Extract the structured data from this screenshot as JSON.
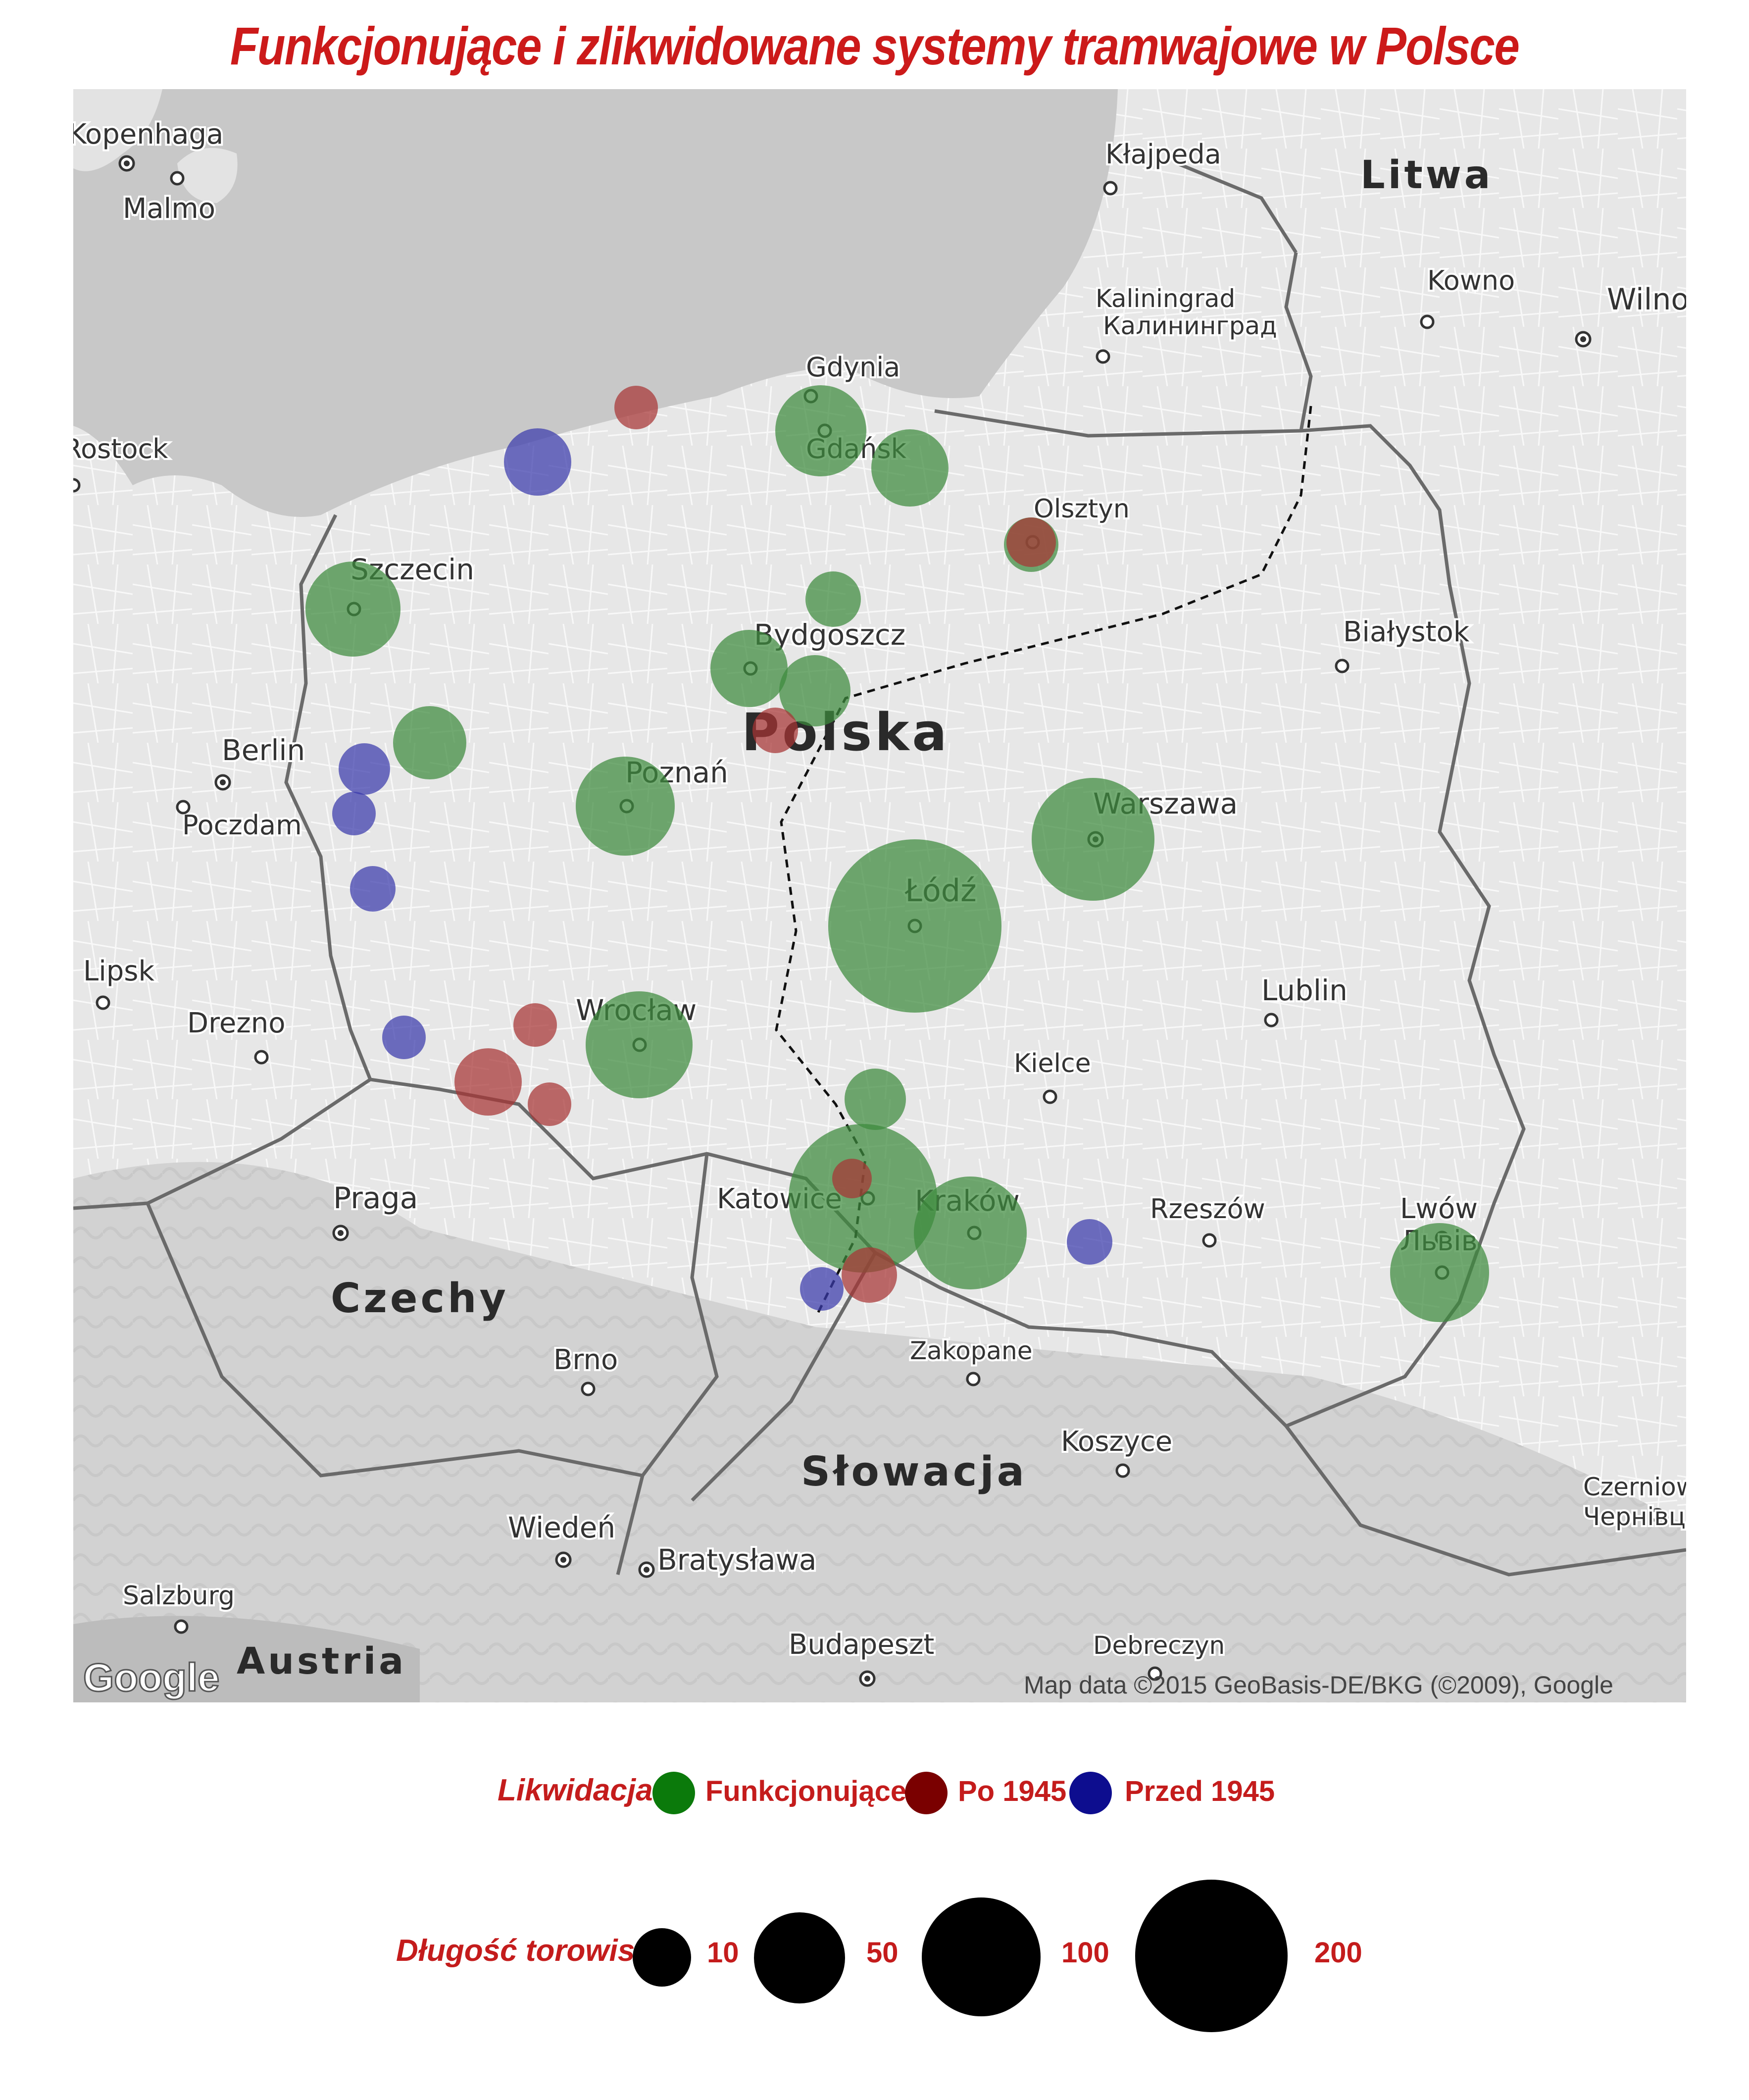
{
  "title": "Funkcjonujące i zlikwidowane systemy tramwajowe w Polsce",
  "map": {
    "attribution": "Map data ©2015 GeoBasis-DE/BKG (©2009), Google",
    "logo": "Google",
    "countries": [
      "Polska",
      "Litwa",
      "Czechy",
      "Słowacja",
      "Austria"
    ],
    "cities": [
      "Kłajpeda",
      "Kowno",
      "Wilno",
      "Kaliningrad",
      "Калининград",
      "Gdynia",
      "Gdańsk",
      "Olsztyn",
      "Szczecin",
      "Bydgoszcz",
      "Białystok",
      "Berlin",
      "Poczdam",
      "Poznań",
      "Warszawa",
      "Łódź",
      "Lipsk",
      "Lublin",
      "Drezno",
      "Wrocław",
      "Kielce",
      "Praga",
      "Katowice",
      "Kraków",
      "Rzeszów",
      "Lwów",
      "Львів",
      "Brno",
      "Zakopane",
      "Koszyce",
      "Wiedeń",
      "Bratysława",
      "Salzburg",
      "Budapeszt",
      "Debreczyn",
      "Czerniowce",
      "Чернівці",
      "Kopenhaga",
      "Malmo",
      "Rostock"
    ],
    "colors": {
      "functioning": "#3d8a3d",
      "after_1945": "#a83434",
      "before_1945": "#3a3aac",
      "land": "#e9e9e9",
      "sea": "#c9c9c9"
    }
  },
  "legend_status": {
    "title": "Likwidacja",
    "items": [
      {
        "label": "Funkcjonujące",
        "color": "#0b7a0b"
      },
      {
        "label": "Po 1945",
        "color": "#7a0000"
      },
      {
        "label": "Przed 1945",
        "color": "#0d0d8f"
      }
    ]
  },
  "legend_size": {
    "title": "Długość torowisk",
    "items": [
      {
        "label": "10",
        "value": 10
      },
      {
        "label": "50",
        "value": 50
      },
      {
        "label": "100",
        "value": 100
      },
      {
        "label": "200",
        "value": 200
      }
    ]
  }
}
